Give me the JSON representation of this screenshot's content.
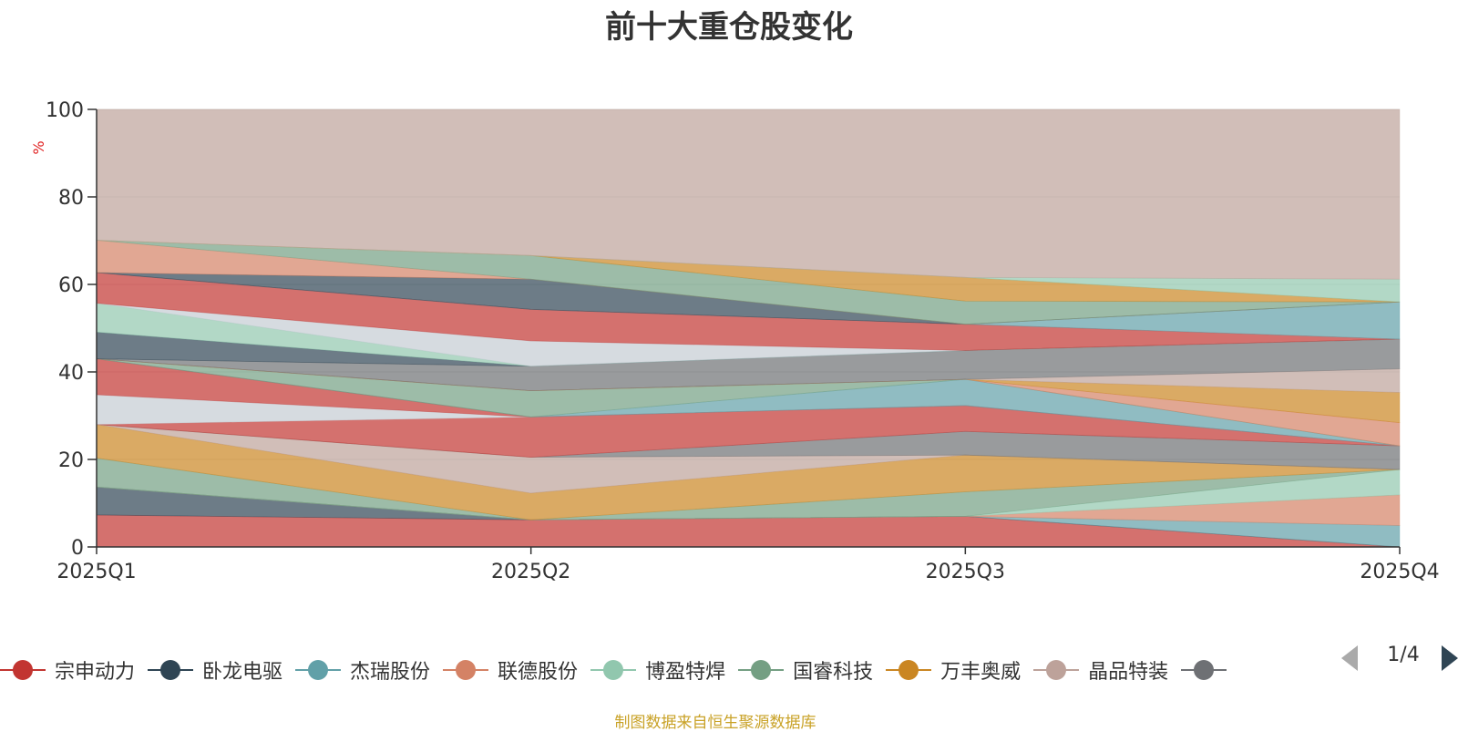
{
  "title": "前十大重仓股变化",
  "source_note": "制图数据来自恒生聚源数据库",
  "pager": {
    "text": "1/4"
  },
  "chart_data": {
    "type": "area",
    "stacked": true,
    "title": "前十大重仓股变化",
    "ylabel": "%",
    "ylim": [
      0,
      100
    ],
    "yticks": [
      0,
      20,
      40,
      60,
      80,
      100
    ],
    "x": [
      "2025Q1",
      "2025Q2",
      "2025Q3",
      "2025Q4"
    ],
    "grid": true,
    "legend_position": "bottom",
    "series": [
      {
        "name": "宗申动力",
        "color": "#c23531",
        "values": [
          7.3,
          6.2,
          7.0,
          0.0
        ]
      },
      {
        "name": "卧龙电驱",
        "color": "#2f4554",
        "values": [
          6.4,
          0.0,
          0.0,
          0.0
        ]
      },
      {
        "name": "杰瑞股份",
        "color": "#61a0a8",
        "values": [
          0.0,
          0.0,
          0.0,
          4.9
        ]
      },
      {
        "name": "联德股份",
        "color": "#d48265",
        "values": [
          0.0,
          0.0,
          0.0,
          7.0
        ]
      },
      {
        "name": "博盈特焊",
        "color": "#91c7ae",
        "values": [
          0.0,
          0.0,
          0.0,
          5.8
        ]
      },
      {
        "name": "国睿科技",
        "color": "#749f83",
        "values": [
          6.6,
          0.0,
          5.6,
          0.0
        ]
      },
      {
        "name": "万丰奥威",
        "color": "#ca8622",
        "values": [
          7.7,
          6.1,
          8.4,
          0.0
        ]
      },
      {
        "name": "晶品特装",
        "color": "#bda29a",
        "values": [
          0.0,
          8.2,
          0.0,
          0.0
        ]
      },
      {
        "name": "",
        "color": "#6e7074",
        "values": [
          0.0,
          0.0,
          5.4,
          5.4
        ]
      },
      {
        "name": "",
        "color": "#c23531",
        "values": [
          0.0,
          9.2,
          5.9,
          0.0
        ]
      },
      {
        "name": "",
        "color": "#c4ccd3",
        "values": [
          6.8,
          0.0,
          0.0,
          0.0
        ]
      },
      {
        "name": "",
        "color": "#c23531",
        "values": [
          8.2,
          0.0,
          0.0,
          0.0
        ]
      },
      {
        "name": "",
        "color": "#61a0a8",
        "values": [
          0.0,
          0.0,
          6.0,
          0.0
        ]
      },
      {
        "name": "",
        "color": "#749f83",
        "values": [
          0.0,
          6.0,
          0.0,
          0.0
        ]
      },
      {
        "name": "",
        "color": "#d48265",
        "values": [
          0.0,
          0.0,
          0.0,
          5.3
        ]
      },
      {
        "name": "",
        "color": "#ca8622",
        "values": [
          0.0,
          0.0,
          0.0,
          6.9
        ]
      },
      {
        "name": "",
        "color": "#bda29a",
        "values": [
          0.0,
          0.0,
          0.0,
          5.4
        ]
      },
      {
        "name": "",
        "color": "#6e7074",
        "values": [
          0.0,
          5.6,
          6.6,
          6.8
        ]
      },
      {
        "name": "",
        "color": "#2f4554",
        "values": [
          6.1,
          0.0,
          0.0,
          0.0
        ]
      },
      {
        "name": "",
        "color": "#91c7ae",
        "values": [
          6.6,
          0.0,
          0.0,
          0.0
        ]
      },
      {
        "name": "",
        "color": "#c4ccd3",
        "values": [
          0.0,
          5.8,
          0.0,
          0.0
        ]
      },
      {
        "name": "",
        "color": "#c23531",
        "values": [
          7.0,
          7.2,
          6.0,
          0.0
        ]
      },
      {
        "name": "",
        "color": "#61a0a8",
        "values": [
          0.0,
          0.0,
          0.0,
          8.5
        ]
      },
      {
        "name": "",
        "color": "#2f4554",
        "values": [
          0.0,
          6.9,
          0.0,
          0.0
        ]
      },
      {
        "name": "",
        "color": "#d48265",
        "values": [
          7.4,
          0.0,
          0.0,
          0.0
        ]
      },
      {
        "name": "",
        "color": "#749f83",
        "values": [
          0.0,
          5.4,
          5.3,
          0.0
        ]
      },
      {
        "name": "",
        "color": "#ca8622",
        "values": [
          0.0,
          0.0,
          5.4,
          0.0
        ]
      },
      {
        "name": "",
        "color": "#91c7ae",
        "values": [
          0.0,
          0.0,
          0.0,
          5.2
        ]
      },
      {
        "name": "",
        "color": "#bda29a",
        "values": [
          29.9,
          33.4,
          38.4,
          38.8
        ]
      }
    ]
  }
}
